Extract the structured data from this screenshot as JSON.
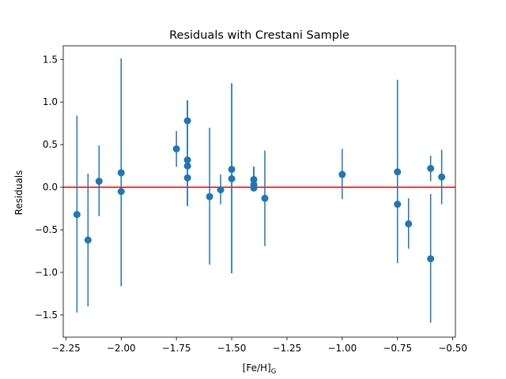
{
  "chart_data": {
    "type": "scatter",
    "title": "Residuals with Crestani Sample",
    "xlabel": "[Fe/H]",
    "xlabel_subscript": "G",
    "ylabel": "Residuals",
    "xlim": [
      -2.262,
      -0.488
    ],
    "ylim": [
      -1.76,
      1.66
    ],
    "xticks": [
      -2.25,
      -2.0,
      -1.75,
      -1.5,
      -1.25,
      -1.0,
      -0.75,
      -0.5
    ],
    "xtick_labels": [
      "−2.25",
      "−2.00",
      "−1.75",
      "−1.50",
      "−1.25",
      "−1.00",
      "−0.75",
      "−0.50"
    ],
    "yticks": [
      -1.5,
      -1.0,
      -0.5,
      0.0,
      0.5,
      1.0,
      1.5
    ],
    "ytick_labels": [
      "−1.5",
      "−1.0",
      "−0.5",
      "0.0",
      "0.5",
      "1.0",
      "1.5"
    ],
    "reference_line": {
      "y": 0.0,
      "color": "#ff0000"
    },
    "marker_color": "#1f77b4",
    "series": [
      {
        "name": "residuals",
        "points": [
          {
            "x": -2.2,
            "y": -0.32,
            "ylow": -1.47,
            "yhigh": 0.84
          },
          {
            "x": -2.15,
            "y": -0.62,
            "ylow": -1.4,
            "yhigh": 0.16
          },
          {
            "x": -2.1,
            "y": 0.07,
            "ylow": -0.34,
            "yhigh": 0.49
          },
          {
            "x": -2.0,
            "y": 0.17,
            "ylow": -1.16,
            "yhigh": 1.51
          },
          {
            "x": -2.0,
            "y": -0.05,
            "ylow": -1.16,
            "yhigh": 1.51
          },
          {
            "x": -1.75,
            "y": 0.45,
            "ylow": 0.24,
            "yhigh": 0.66
          },
          {
            "x": -1.7,
            "y": 0.78,
            "ylow": 0.45,
            "yhigh": 1.02
          },
          {
            "x": -1.7,
            "y": 0.32,
            "ylow": -0.22,
            "yhigh": 1.02
          },
          {
            "x": -1.7,
            "y": 0.25,
            "ylow": -0.22,
            "yhigh": 1.02
          },
          {
            "x": -1.7,
            "y": 0.11,
            "ylow": -0.22,
            "yhigh": 1.02
          },
          {
            "x": -1.6,
            "y": -0.11,
            "ylow": -0.91,
            "yhigh": 0.7
          },
          {
            "x": -1.55,
            "y": -0.03,
            "ylow": -0.2,
            "yhigh": 0.15
          },
          {
            "x": -1.5,
            "y": 0.21,
            "ylow": -1.01,
            "yhigh": 1.22
          },
          {
            "x": -1.5,
            "y": 0.1,
            "ylow": -1.01,
            "yhigh": 1.22
          },
          {
            "x": -1.4,
            "y": 0.09,
            "ylow": -0.05,
            "yhigh": 0.24
          },
          {
            "x": -1.4,
            "y": 0.03,
            "ylow": -0.05,
            "yhigh": 0.24
          },
          {
            "x": -1.4,
            "y": -0.01,
            "ylow": -0.05,
            "yhigh": 0.24
          },
          {
            "x": -1.35,
            "y": -0.13,
            "ylow": -0.69,
            "yhigh": 0.43
          },
          {
            "x": -1.0,
            "y": 0.15,
            "ylow": -0.14,
            "yhigh": 0.45
          },
          {
            "x": -0.75,
            "y": 0.18,
            "ylow": -0.89,
            "yhigh": 1.26
          },
          {
            "x": -0.75,
            "y": -0.2,
            "ylow": -0.89,
            "yhigh": 1.26
          },
          {
            "x": -0.7,
            "y": -0.43,
            "ylow": -0.72,
            "yhigh": -0.13
          },
          {
            "x": -0.6,
            "y": 0.22,
            "ylow": 0.07,
            "yhigh": 0.37
          },
          {
            "x": -0.6,
            "y": -0.84,
            "ylow": -1.59,
            "yhigh": -0.08
          },
          {
            "x": -0.55,
            "y": 0.12,
            "ylow": -0.2,
            "yhigh": 0.44
          }
        ]
      }
    ]
  }
}
